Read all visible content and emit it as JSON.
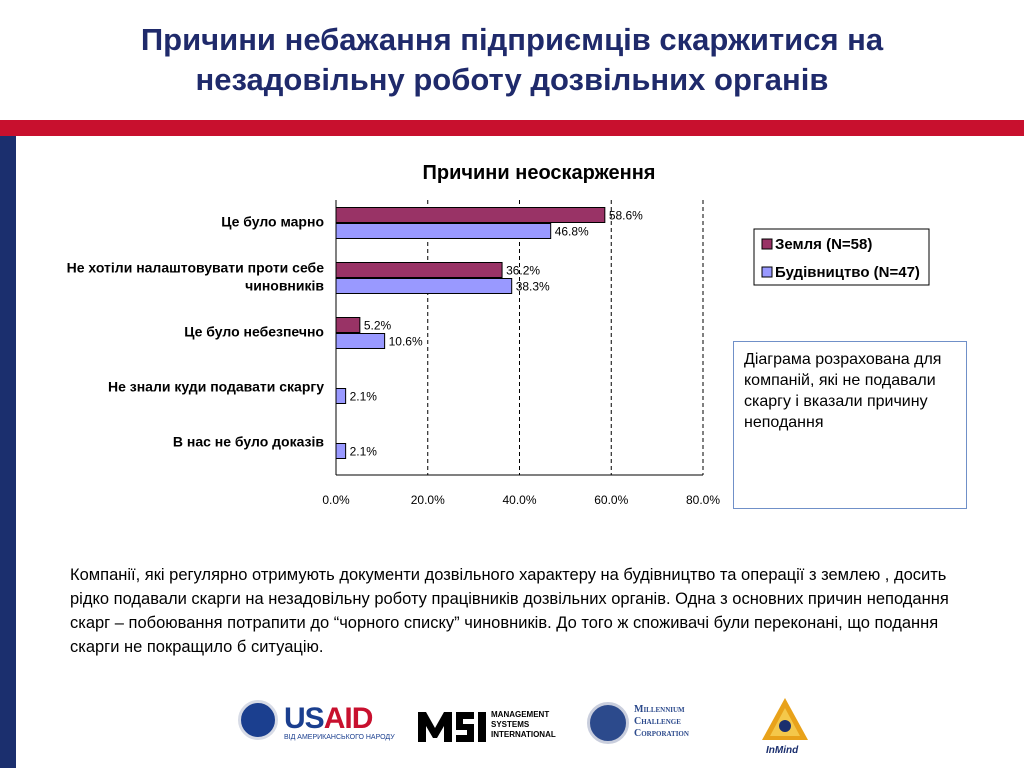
{
  "title": "Причини небажання підприємців скаржитися на незадовільну роботу дозвільних органів",
  "chart_data": {
    "type": "bar",
    "orientation": "horizontal",
    "title": "Причини неоскарження",
    "categories": [
      "Це було марно",
      "Не хотіли налаштовувати проти себе чиновників",
      "Це було небезпечно",
      "Не знали куди подавати скаргу",
      "В нас не було доказів"
    ],
    "category_lines": [
      [
        "Це було марно"
      ],
      [
        "Не хотіли налаштовувати проти себе",
        "чиновників"
      ],
      [
        "Це було небезпечно"
      ],
      [
        "Не знали куди подавати скаргу"
      ],
      [
        "В нас не було доказів"
      ]
    ],
    "series": [
      {
        "name": "Земля (N=58)",
        "color": "#993366",
        "values": [
          58.6,
          36.2,
          5.2,
          null,
          null
        ],
        "labels": [
          "58.6%",
          "36.2%",
          "5.2%",
          "",
          ""
        ]
      },
      {
        "name": "Будівництво (N=47)",
        "color": "#9999ff",
        "values": [
          46.8,
          38.3,
          10.6,
          2.1,
          2.1
        ],
        "labels": [
          "46.8%",
          "38.3%",
          "10.6%",
          "2.1%",
          "2.1%"
        ]
      }
    ],
    "xlim": [
      0,
      80
    ],
    "x_ticks": [
      0,
      20,
      40,
      60,
      80
    ],
    "x_tick_labels": [
      "0.0%",
      "20.0%",
      "40.0%",
      "60.0%",
      "80.0%"
    ],
    "gridlines": "vertical dashed",
    "legend_position": "right"
  },
  "note": "Діаграма розрахована для компаній, які не подавали скаргу і вказали причину неподання",
  "body_text": "Компанії, які регулярно отримують документи дозвільного характеру на будівництво та операції з землею , досить рідко подавали скарги на незадовільну роботу працівників дозвільних органів. Одна з основних причин неподання скарг – побоювання потрапити до “чорного списку” чиновників. До того ж споживачі були переконані, що подання скарги не покращило б ситуацію.",
  "logos": {
    "usaid": {
      "name": "USAID",
      "subtitle": "ВІД АМЕРИКАНСЬКОГО НАРОДУ"
    },
    "msi": {
      "name": "MSI",
      "lines": [
        "MANAGEMENT",
        "SYSTEMS",
        "INTERNATIONAL"
      ]
    },
    "mcc": {
      "lines": [
        "Millennium",
        "Challenge",
        "Corporation"
      ]
    },
    "inmind": {
      "name": "InMind"
    }
  }
}
